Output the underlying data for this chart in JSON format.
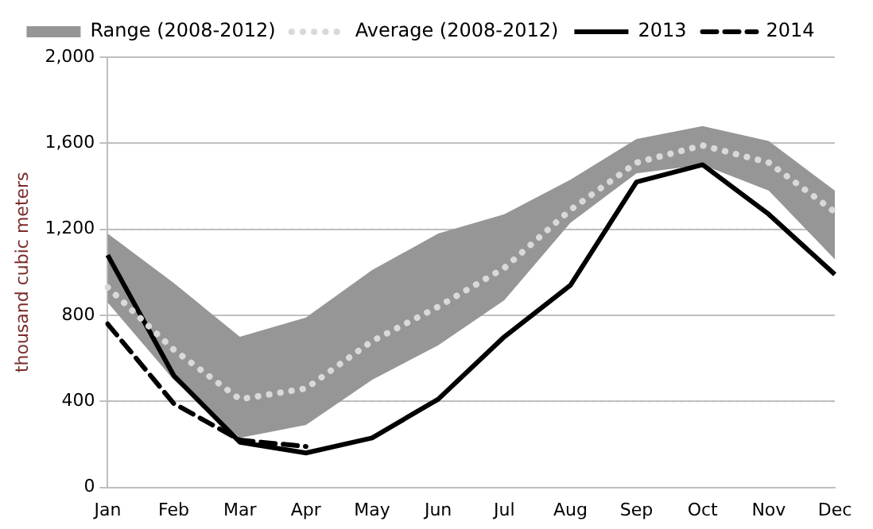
{
  "chart_data": {
    "type": "line",
    "ylabel": "thousand cubic meters",
    "categories": [
      "Jan",
      "Feb",
      "Mar",
      "Apr",
      "May",
      "Jun",
      "Jul",
      "Aug",
      "Sep",
      "Oct",
      "Nov",
      "Dec"
    ],
    "ylim": [
      0,
      2000
    ],
    "yticks": [
      0,
      400,
      800,
      {
        "value": 1200,
        "label": "1,200"
      },
      {
        "value": 1600,
        "label": "1,600"
      },
      {
        "value": 2000,
        "label": "2,000"
      }
    ],
    "grid": "y",
    "legend": "top",
    "marker": "none",
    "series": [
      {
        "name": "Range (2008-2012)",
        "type": "area",
        "color": "#969696",
        "values": [
          null,
          null,
          null,
          null,
          null,
          null,
          null,
          null,
          null,
          null,
          null,
          null
        ],
        "lower": [
          860,
          500,
          230,
          290,
          500,
          660,
          870,
          1230,
          1460,
          1500,
          1380,
          1060
        ],
        "upper": [
          1180,
          950,
          700,
          790,
          1010,
          1180,
          1270,
          1430,
          1620,
          1680,
          1610,
          1380
        ]
      },
      {
        "name": "Average (2008-2012)",
        "type": "line",
        "color": "#d9d9d9",
        "line_style": "dotted",
        "values": [
          930,
          640,
          410,
          460,
          680,
          840,
          1020,
          1290,
          1510,
          1590,
          1510,
          1280
        ]
      },
      {
        "name": "2013",
        "type": "line",
        "color": "#000000",
        "line_style": "solid",
        "values": [
          1080,
          520,
          210,
          160,
          230,
          410,
          700,
          940,
          1420,
          1500,
          1270,
          990
        ]
      },
      {
        "name": "2014",
        "type": "line",
        "color": "#000000",
        "line_style": "dashed",
        "values": [
          760,
          390,
          220,
          190,
          null,
          null,
          null,
          null,
          null,
          null,
          null,
          null
        ]
      }
    ]
  }
}
